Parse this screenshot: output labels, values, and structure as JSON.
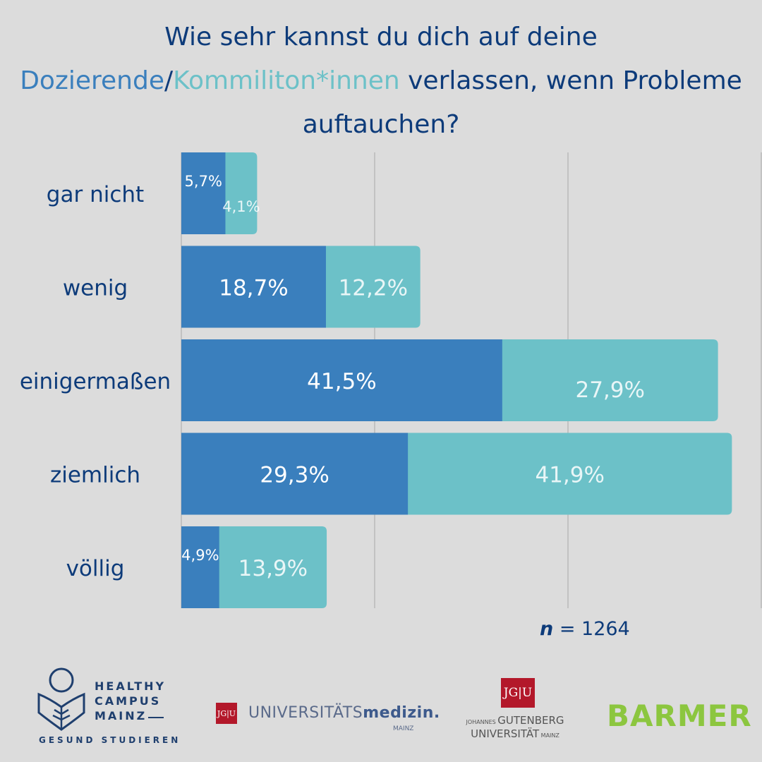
{
  "title": {
    "line1": "Wie sehr kannst du dich auf deine",
    "line2_part1": "Dozierende",
    "line2_sep": "/",
    "line2_part2": "Kommiliton*innen",
    "line2_part3": " verlassen, wenn Probleme",
    "line3": "auftauchen?"
  },
  "chart_data": {
    "type": "bar",
    "orientation": "horizontal",
    "stacked": true,
    "categories": [
      "gar nicht",
      "wenig",
      "einigermaßen",
      "ziemlich",
      "völlig"
    ],
    "series": [
      {
        "name": "Dozierende",
        "color": "#3a7fbd",
        "values": [
          5.7,
          18.7,
          41.5,
          29.3,
          4.9
        ],
        "labels": [
          "5,7%",
          "18,7%",
          "41,5%",
          "29,3%",
          "4,9%"
        ]
      },
      {
        "name": "Kommiliton*innen",
        "color": "#6cc1c8",
        "values": [
          4.1,
          12.2,
          27.9,
          41.9,
          13.9
        ],
        "labels": [
          "4,1%",
          "12,2%",
          "27,9%",
          "41,9%",
          "13,9%"
        ]
      }
    ],
    "xlim": [
      0,
      75
    ],
    "grid": true,
    "grid_values": [
      0,
      25,
      50,
      75
    ]
  },
  "footer": {
    "n_symbol": "n",
    "n_rest": " = 1264",
    "healthy_campus": [
      "HEALTHY",
      "CAMPUS",
      "MAINZ"
    ],
    "healthy_campus_sub": "GESUND STUDIEREN",
    "um_jgu": "JG|U",
    "um_name_plain": "UNIVERSITÄTS",
    "um_name_bold": "medizin.",
    "um_city": "MAINZ",
    "jgu": "JG|U",
    "jgu_line1_small": "JOHANNES ",
    "jgu_line1": "GUTENBERG",
    "jgu_line2": "UNIVERSITÄT",
    "jgu_line2_small": " MAINZ",
    "barmer": "BARMER"
  }
}
